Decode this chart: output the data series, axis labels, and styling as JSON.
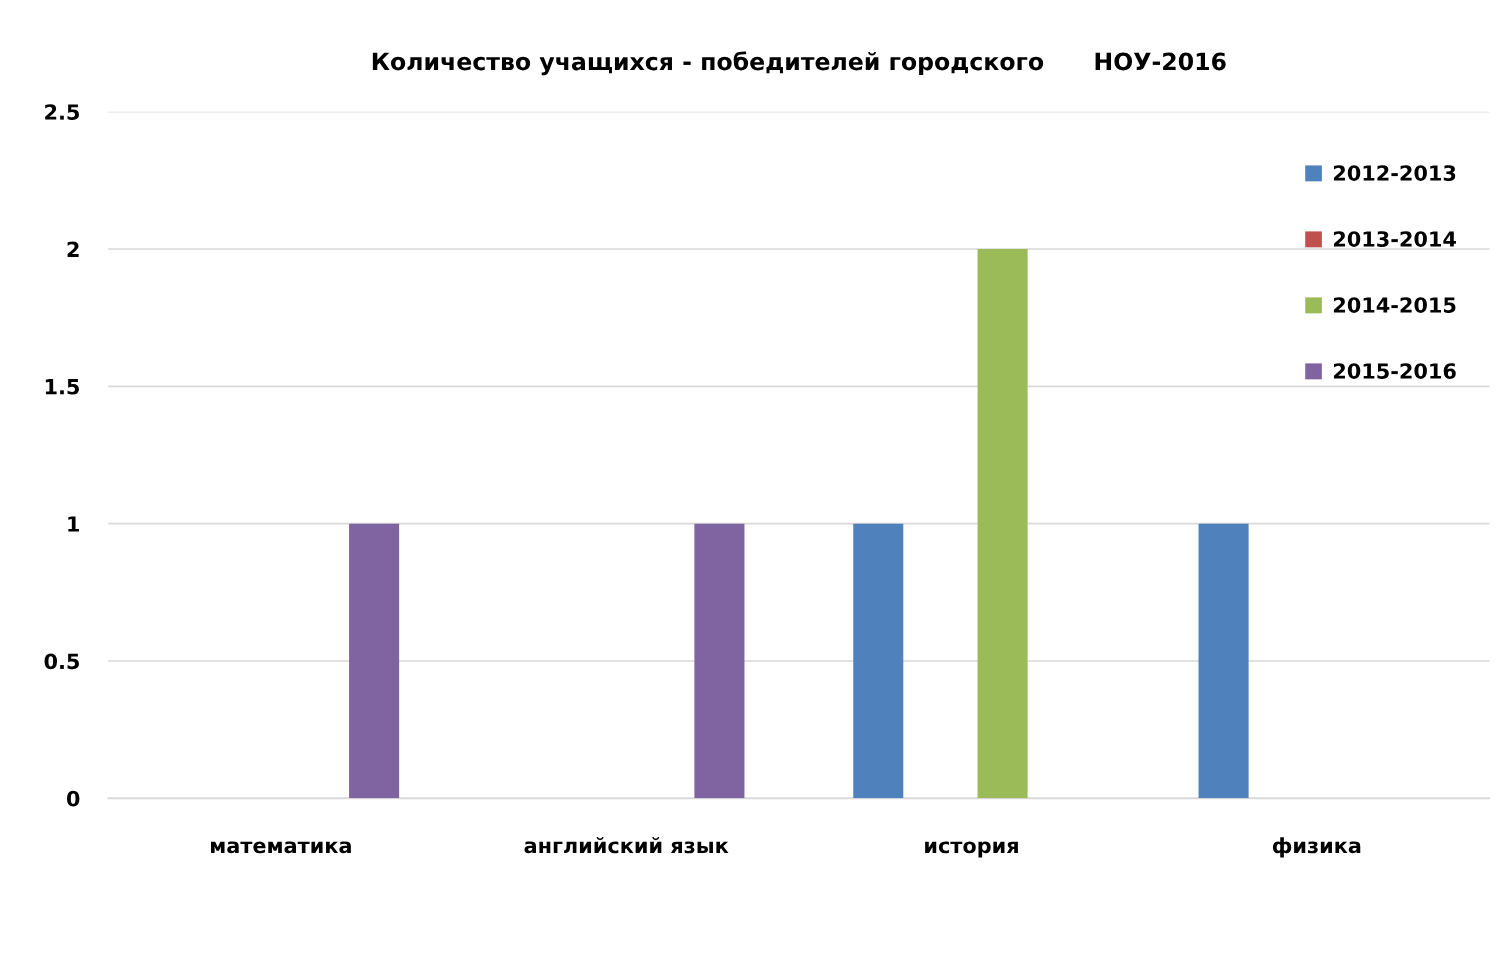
{
  "chart_data": {
    "type": "bar",
    "title": "Количество учащихся - победителей городского      НОУ-2016",
    "categories": [
      "математика",
      "английский язык",
      "история",
      "физика"
    ],
    "series": [
      {
        "name": "2012-2013",
        "color": "#4f81bd",
        "values": [
          0,
          0,
          1,
          1
        ]
      },
      {
        "name": "2013-2014",
        "color": "#c0504d",
        "values": [
          0,
          0,
          0,
          0
        ]
      },
      {
        "name": "2014-2015",
        "color": "#9bbb59",
        "values": [
          0,
          0,
          2,
          0
        ]
      },
      {
        "name": "2015-2016",
        "color": "#8064a2",
        "values": [
          1,
          1,
          0,
          0
        ]
      }
    ],
    "ylim": [
      0,
      2.5
    ],
    "yticks": [
      0,
      0.5,
      1,
      1.5,
      2,
      2.5
    ],
    "grid": "y",
    "legend": "top right"
  }
}
